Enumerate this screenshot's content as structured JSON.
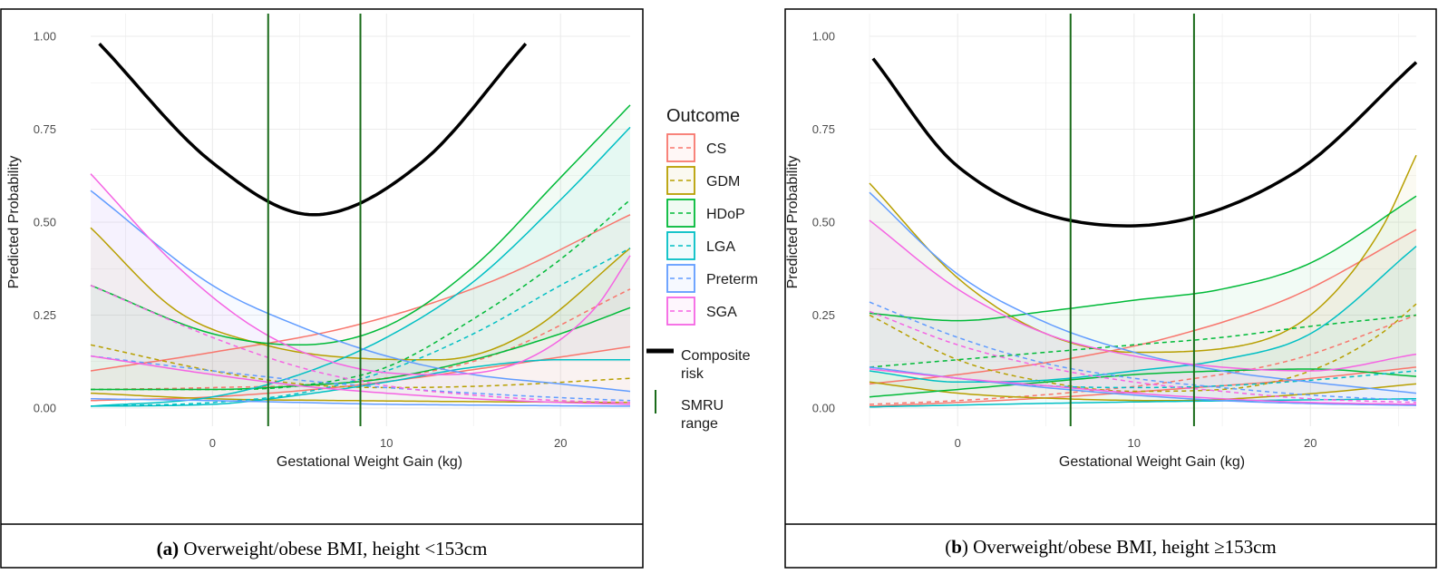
{
  "legend": {
    "title": "Outcome",
    "items": [
      {
        "label": "CS",
        "color": "#F8766D"
      },
      {
        "label": "GDM",
        "color": "#B79F00"
      },
      {
        "label": "HDoP",
        "color": "#00BA38"
      },
      {
        "label": "LGA",
        "color": "#00BFC4"
      },
      {
        "label": "Preterm",
        "color": "#619CFF"
      },
      {
        "label": "SGA",
        "color": "#F564E3"
      }
    ],
    "composite_label_1": "Composite",
    "composite_label_2": "risk",
    "smru_label_1": "SMRU",
    "smru_label_2": "range"
  },
  "captions": {
    "a_prefix": "(a)",
    "a_text": " Overweight/obese BMI, height <153cm",
    "b_open": "(",
    "b_letter": "b",
    "b_close": ")",
    "b_text": " Overweight/obese BMI, height ≥153cm"
  },
  "chart_data": [
    {
      "type": "line",
      "panel": "a",
      "xlabel": "Gestational Weight Gain (kg)",
      "ylabel": "Predicted Probability",
      "xlim": [
        -7,
        24
      ],
      "ylim": [
        0,
        1
      ],
      "xticks": [
        0,
        10,
        20
      ],
      "yticks": [
        0,
        0.25,
        0.5,
        0.75,
        1
      ],
      "ytick_labels": [
        "0.00",
        "0.25",
        "0.50",
        "0.75",
        "1.00"
      ],
      "smru_range": [
        3.2,
        8.5
      ],
      "composite": {
        "x": [
          -6.5,
          0,
          5.8,
          12,
          18
        ],
        "y": [
          0.98,
          0.66,
          0.52,
          0.66,
          0.98
        ]
      },
      "series": [
        {
          "name": "CS",
          "upper": {
            "x": [
              -7,
              0,
              8,
              16,
              24
            ],
            "y": [
              0.1,
              0.15,
              0.22,
              0.34,
              0.52
            ]
          },
          "mid": {
            "x": [
              -7,
              0,
              8,
              16,
              24
            ],
            "y": [
              0.05,
              0.055,
              0.07,
              0.14,
              0.32
            ]
          },
          "lower": {
            "x": [
              -7,
              0,
              8,
              16,
              24
            ],
            "y": [
              0.02,
              0.03,
              0.06,
              0.11,
              0.165
            ]
          }
        },
        {
          "name": "GDM",
          "upper": {
            "x": [
              -7,
              -2,
              3,
              8,
              13,
              18,
              24
            ],
            "y": [
              0.485,
              0.26,
              0.17,
              0.135,
              0.13,
              0.2,
              0.43
            ]
          },
          "mid": {
            "x": [
              -7,
              0,
              5,
              10,
              16,
              24
            ],
            "y": [
              0.17,
              0.1,
              0.065,
              0.055,
              0.06,
              0.08
            ]
          },
          "lower": {
            "x": [
              -7,
              0,
              8,
              16,
              24
            ],
            "y": [
              0.04,
              0.025,
              0.02,
              0.017,
              0.015
            ]
          }
        },
        {
          "name": "HDoP",
          "upper": {
            "x": [
              -7,
              0,
              5,
              10,
              15,
              20,
              24
            ],
            "y": [
              0.33,
              0.2,
              0.17,
              0.22,
              0.38,
              0.62,
              0.815
            ]
          },
          "mid": {
            "x": [
              -7,
              0,
              5,
              10,
              15,
              20,
              24
            ],
            "y": [
              0.05,
              0.05,
              0.06,
              0.11,
              0.24,
              0.4,
              0.56
            ]
          },
          "lower": {
            "x": [
              -7,
              0,
              5,
              10,
              15,
              20,
              24
            ],
            "y": [
              0.05,
              0.05,
              0.06,
              0.08,
              0.13,
              0.2,
              0.27
            ]
          }
        },
        {
          "name": "LGA",
          "upper": {
            "x": [
              -7,
              0,
              5,
              10,
              15,
              20,
              24
            ],
            "y": [
              0.005,
              0.03,
              0.09,
              0.19,
              0.34,
              0.56,
              0.755
            ]
          },
          "mid": {
            "x": [
              -7,
              0,
              5,
              10,
              15,
              20,
              24
            ],
            "y": [
              0.005,
              0.015,
              0.04,
              0.1,
              0.2,
              0.33,
              0.43
            ]
          },
          "lower": {
            "x": [
              -7,
              0,
              5,
              10,
              15,
              20,
              24
            ],
            "y": [
              0.005,
              0.01,
              0.035,
              0.07,
              0.11,
              0.13,
              0.13
            ]
          }
        },
        {
          "name": "Preterm",
          "upper": {
            "x": [
              -7,
              0,
              5,
              10,
              15,
              20,
              24
            ],
            "y": [
              0.585,
              0.33,
              0.22,
              0.14,
              0.09,
              0.065,
              0.045
            ]
          },
          "mid": {
            "x": [
              -7,
              0,
              5,
              10,
              15,
              20,
              24
            ],
            "y": [
              0.14,
              0.1,
              0.075,
              0.055,
              0.04,
              0.028,
              0.02
            ]
          },
          "lower": {
            "x": [
              -7,
              0,
              5,
              10,
              15,
              20,
              24
            ],
            "y": [
              0.025,
              0.02,
              0.015,
              0.01,
              0.008,
              0.006,
              0.005
            ]
          }
        },
        {
          "name": "SGA",
          "upper": {
            "x": [
              -7,
              -2,
              3,
              8,
              13,
              18,
              22,
              24
            ],
            "y": [
              0.63,
              0.38,
              0.2,
              0.11,
              0.09,
              0.13,
              0.27,
              0.41
            ]
          },
          "mid": {
            "x": [
              -7,
              0,
              5,
              10,
              15,
              20,
              24
            ],
            "y": [
              0.33,
              0.19,
              0.11,
              0.06,
              0.035,
              0.02,
              0.015
            ]
          },
          "lower": {
            "x": [
              -7,
              0,
              5,
              10,
              15,
              20,
              24
            ],
            "y": [
              0.14,
              0.09,
              0.06,
              0.04,
              0.025,
              0.015,
              0.01
            ]
          }
        }
      ]
    },
    {
      "type": "line",
      "panel": "b",
      "xlabel": "Gestational Weight Gain (kg)",
      "ylabel": "Predicted Probability",
      "xlim": [
        -5,
        26
      ],
      "ylim": [
        0,
        1
      ],
      "xticks": [
        0,
        10,
        20
      ],
      "yticks": [
        0,
        0.25,
        0.5,
        0.75,
        1
      ],
      "ytick_labels": [
        "0.00",
        "0.25",
        "0.50",
        "0.75",
        "1.00"
      ],
      "smru_range": [
        6.4,
        13.4
      ],
      "composite": {
        "x": [
          -4.8,
          0,
          9.7,
          19,
          26
        ],
        "y": [
          0.94,
          0.65,
          0.49,
          0.63,
          0.93
        ]
      },
      "series": [
        {
          "name": "CS",
          "upper": {
            "x": [
              -5,
              0,
              6,
              12,
              19,
              26
            ],
            "y": [
              0.065,
              0.09,
              0.13,
              0.19,
              0.3,
              0.48
            ]
          },
          "mid": {
            "x": [
              -5,
              0,
              6,
              12,
              19,
              26
            ],
            "y": [
              0.01,
              0.02,
              0.04,
              0.07,
              0.13,
              0.25
            ]
          },
          "lower": {
            "x": [
              -5,
              0,
              6,
              12,
              19,
              26
            ],
            "y": [
              0.005,
              0.015,
              0.03,
              0.05,
              0.075,
              0.11
            ]
          }
        },
        {
          "name": "GDM",
          "upper": {
            "x": [
              -5,
              0,
              5,
              10,
              15,
              20,
              24,
              26
            ],
            "y": [
              0.605,
              0.35,
              0.2,
              0.15,
              0.16,
              0.25,
              0.48,
              0.68
            ]
          },
          "mid": {
            "x": [
              -5,
              0,
              5,
              10,
              15,
              20,
              24,
              26
            ],
            "y": [
              0.25,
              0.13,
              0.07,
              0.045,
              0.05,
              0.1,
              0.2,
              0.28
            ]
          },
          "lower": {
            "x": [
              -5,
              0,
              6,
              12,
              19,
              26
            ],
            "y": [
              0.07,
              0.04,
              0.025,
              0.02,
              0.035,
              0.065
            ]
          }
        },
        {
          "name": "HDoP",
          "upper": {
            "x": [
              -5,
              0,
              5,
              10,
              15,
              20,
              26
            ],
            "y": [
              0.255,
              0.235,
              0.26,
              0.29,
              0.32,
              0.39,
              0.57
            ]
          },
          "mid": {
            "x": [
              -5,
              0,
              5,
              10,
              15,
              20,
              26
            ],
            "y": [
              0.11,
              0.13,
              0.15,
              0.17,
              0.19,
              0.22,
              0.25
            ]
          },
          "lower": {
            "x": [
              -5,
              0,
              5,
              10,
              15,
              20,
              26
            ],
            "y": [
              0.03,
              0.05,
              0.07,
              0.09,
              0.1,
              0.105,
              0.085
            ]
          }
        },
        {
          "name": "LGA",
          "upper": {
            "x": [
              -5,
              0,
              5,
              10,
              15,
              20,
              26
            ],
            "y": [
              0.1,
              0.07,
              0.075,
              0.1,
              0.13,
              0.2,
              0.435
            ]
          },
          "mid": {
            "x": [
              -5,
              0,
              5,
              10,
              15,
              20,
              26
            ],
            "y": [
              0.11,
              0.08,
              0.06,
              0.055,
              0.06,
              0.075,
              0.1
            ]
          },
          "lower": {
            "x": [
              -5,
              0,
              8,
              16,
              26
            ],
            "y": [
              0.003,
              0.008,
              0.015,
              0.02,
              0.025
            ]
          }
        },
        {
          "name": "Preterm",
          "upper": {
            "x": [
              -5,
              0,
              5,
              10,
              15,
              20,
              26
            ],
            "y": [
              0.58,
              0.36,
              0.23,
              0.15,
              0.1,
              0.07,
              0.04
            ]
          },
          "mid": {
            "x": [
              -5,
              0,
              5,
              10,
              15,
              20,
              26
            ],
            "y": [
              0.285,
              0.19,
              0.12,
              0.08,
              0.055,
              0.035,
              0.02
            ]
          },
          "lower": {
            "x": [
              -5,
              0,
              5,
              10,
              15,
              20,
              26
            ],
            "y": [
              0.11,
              0.08,
              0.055,
              0.035,
              0.02,
              0.012,
              0.007
            ]
          }
        },
        {
          "name": "SGA",
          "upper": {
            "x": [
              -5,
              0,
              5,
              10,
              15,
              20,
              26
            ],
            "y": [
              0.505,
              0.32,
              0.2,
              0.14,
              0.11,
              0.1,
              0.145
            ]
          },
          "mid": {
            "x": [
              -5,
              0,
              5,
              10,
              15,
              20,
              26
            ],
            "y": [
              0.26,
              0.17,
              0.11,
              0.07,
              0.045,
              0.025,
              0.015
            ]
          },
          "lower": {
            "x": [
              -5,
              0,
              5,
              10,
              15,
              20,
              26
            ],
            "y": [
              0.105,
              0.08,
              0.06,
              0.04,
              0.025,
              0.015,
              0.01
            ]
          }
        }
      ]
    }
  ]
}
